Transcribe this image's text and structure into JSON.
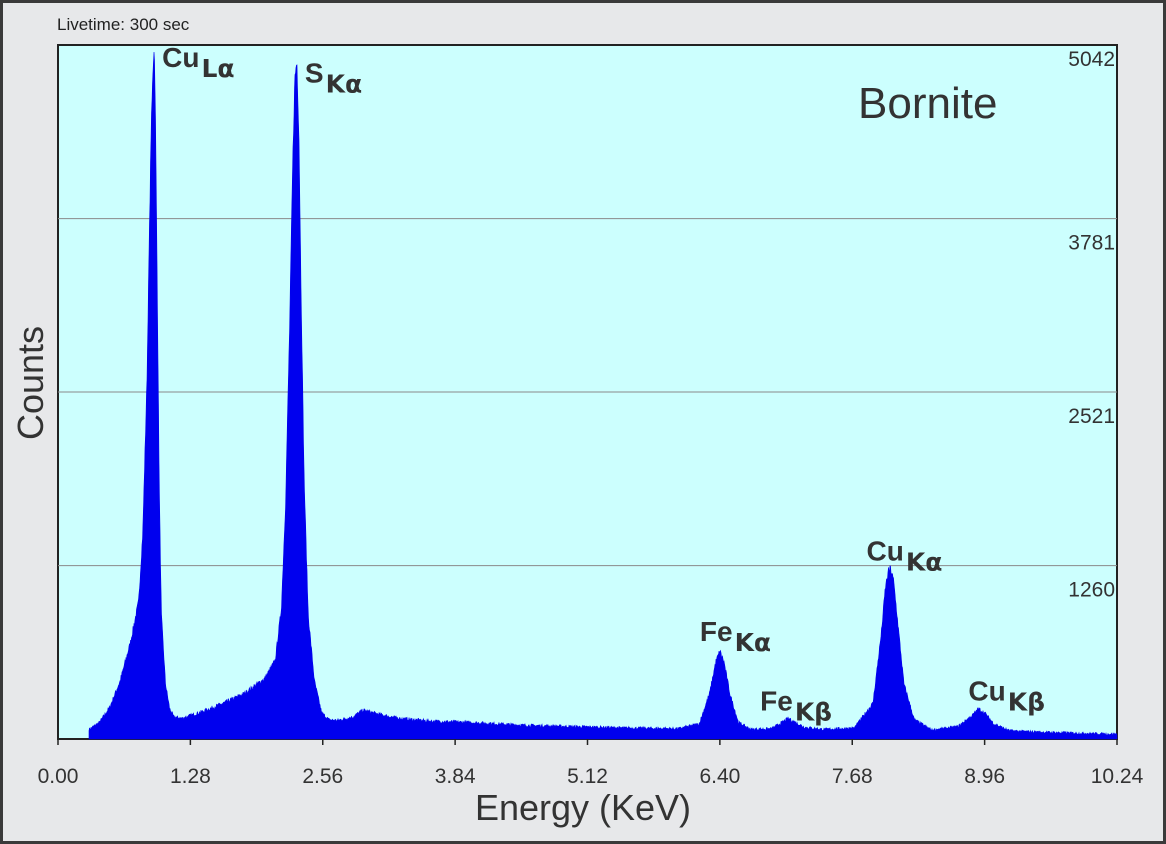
{
  "chart_data": {
    "type": "area",
    "note": "Livetime: 300 sec",
    "sample_title": "Bornite",
    "xlabel": "Energy (KeV)",
    "ylabel": "Counts",
    "xlim": [
      0,
      10.24
    ],
    "ylim": [
      0,
      5042
    ],
    "x_ticks": [
      "0.00",
      "1.28",
      "2.56",
      "3.84",
      "5.12",
      "6.40",
      "7.68",
      "8.96",
      "10.24"
    ],
    "y_ticks": [
      "1260",
      "2521",
      "3781",
      "5042"
    ],
    "grid": "horizontal",
    "colors": {
      "plot_bg": "#ccfffe",
      "spectrum": "#0000ee",
      "grid": "#8a8a8a"
    },
    "peaks": [
      {
        "element": "Cu",
        "line": "Lα",
        "energy": 0.93,
        "counts": 5042
      },
      {
        "element": "S",
        "line": "Kα",
        "energy": 2.31,
        "counts": 4930
      },
      {
        "element": "Fe",
        "line": "Kα",
        "energy": 6.4,
        "counts": 640
      },
      {
        "element": "Fe",
        "line": "Kβ",
        "energy": 7.06,
        "counts": 150
      },
      {
        "element": "Cu",
        "line": "Kα",
        "energy": 8.05,
        "counts": 1240
      },
      {
        "element": "Cu",
        "line": "Kβ",
        "energy": 8.9,
        "counts": 220
      }
    ],
    "spectrum": {
      "x": [
        0.3,
        0.4,
        0.5,
        0.6,
        0.7,
        0.78,
        0.82,
        0.86,
        0.88,
        0.9,
        0.92,
        0.93,
        0.94,
        0.96,
        0.98,
        1.0,
        1.04,
        1.08,
        1.12,
        1.2,
        1.4,
        1.6,
        1.8,
        2.0,
        2.1,
        2.16,
        2.2,
        2.24,
        2.27,
        2.29,
        2.31,
        2.33,
        2.35,
        2.38,
        2.42,
        2.48,
        2.55,
        2.62,
        2.7,
        2.85,
        2.95,
        3.1,
        3.3,
        3.6,
        4.0,
        4.5,
        5.0,
        5.5,
        6.0,
        6.2,
        6.3,
        6.36,
        6.4,
        6.44,
        6.5,
        6.58,
        6.7,
        6.9,
        7.0,
        7.06,
        7.12,
        7.22,
        7.4,
        7.7,
        7.88,
        7.96,
        8.0,
        8.03,
        8.05,
        8.08,
        8.12,
        8.18,
        8.28,
        8.45,
        8.7,
        8.84,
        8.9,
        8.96,
        9.05,
        9.2,
        9.5,
        10.0,
        10.24
      ],
      "y": [
        70,
        120,
        230,
        420,
        700,
        1000,
        1500,
        2600,
        3500,
        4400,
        4900,
        5042,
        4700,
        3300,
        1800,
        900,
        400,
        220,
        160,
        150,
        200,
        260,
        330,
        440,
        570,
        950,
        1700,
        3000,
        4200,
        4800,
        4930,
        4400,
        3300,
        1900,
        900,
        420,
        190,
        140,
        135,
        160,
        210,
        180,
        150,
        130,
        120,
        100,
        90,
        80,
        75,
        110,
        330,
        560,
        640,
        560,
        320,
        120,
        70,
        75,
        120,
        150,
        125,
        85,
        70,
        80,
        260,
        760,
        1100,
        1220,
        1240,
        1150,
        850,
        400,
        140,
        65,
        90,
        170,
        220,
        190,
        110,
        60,
        50,
        40,
        35
      ]
    }
  }
}
